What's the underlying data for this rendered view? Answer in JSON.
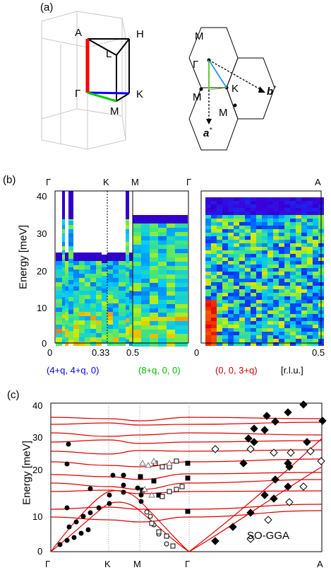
{
  "panel_a": {
    "label": "(a)",
    "bz3d_points": {
      "A": "A",
      "H": "H",
      "L": "L",
      "Gamma": "Γ",
      "K": "K",
      "M": "M"
    },
    "bz2d_points": {
      "M_top": "M",
      "Gamma": "Γ",
      "M_mid": "M",
      "K": "K",
      "M_low": "M",
      "b_star": "b",
      "a_star": "a",
      "star": "*"
    },
    "colors": {
      "GA": "#ff0000",
      "GK": "#0000ff",
      "KM": "#00cc00",
      "GM": "#00cc00",
      "edge": "#000000",
      "grid": "#c8c8c8"
    }
  },
  "panel_b": {
    "label": "(b)",
    "ylabel": "Energy [meV]",
    "yticks": [
      "0",
      "10",
      "20",
      "30",
      "40"
    ],
    "top_labels": [
      "Γ",
      "K",
      "M",
      "Γ",
      "A"
    ],
    "bottom_ticks_left": [
      "0",
      "0.33",
      "0.5"
    ],
    "bottom_ticks_right": [
      "0",
      "0.5"
    ],
    "directions": [
      {
        "text": "(4+q, 4+q, 0)",
        "color": "#0000ff"
      },
      {
        "text": "(8+q, 0, 0)",
        "color": "#00bb00"
      },
      {
        "text": "(0, 0, 3+q)",
        "color": "#cc0000"
      },
      {
        "text": "[r.l.u.]",
        "color": "#000000"
      }
    ]
  },
  "panel_c": {
    "label": "(c)",
    "ylabel": "Energy [meV]",
    "yticks": [
      "0",
      "10",
      "20",
      "30",
      "40"
    ],
    "xticks": [
      "Γ",
      "K",
      "M",
      "Γ",
      "A"
    ],
    "annotation": "SO-GGA",
    "line_color": "#e00000"
  }
}
